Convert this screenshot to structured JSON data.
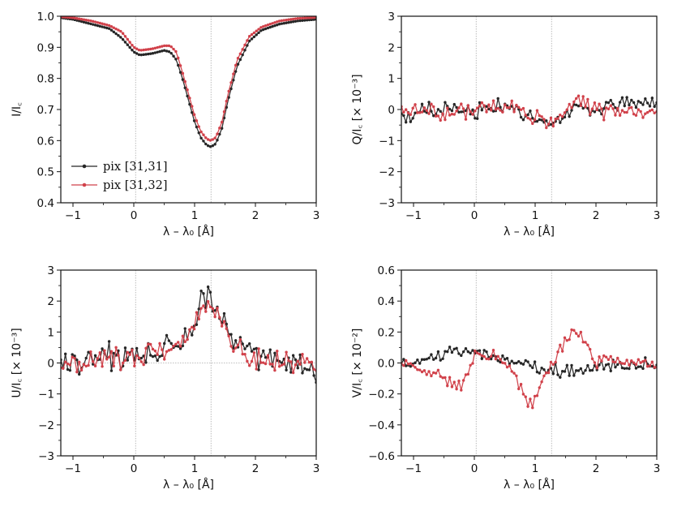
{
  "colors": {
    "pix1": "#262626",
    "pix2": "#d1414a",
    "guide": "#aaaaaa"
  },
  "legend": [
    {
      "label": "pix [31,31]",
      "color": "#262626"
    },
    {
      "label": "pix [31,32]",
      "color": "#d1414a"
    }
  ],
  "chart_data": [
    {
      "id": "I",
      "type": "line",
      "xlabel": "λ – λ₀ [Å]",
      "ylabel": "I/I꜀",
      "xlim": [
        -1.2,
        3
      ],
      "ylim": [
        0.4,
        1.0
      ],
      "xticks": [
        -1,
        0,
        1,
        2,
        3
      ],
      "xtick_labels": [
        "−1",
        "0",
        "1",
        "2",
        "3"
      ],
      "yticks": [
        0.4,
        0.5,
        0.6,
        0.7,
        0.8,
        0.9,
        1.0
      ],
      "ytick_labels": [
        "0.4",
        "0.5",
        "0.6",
        "0.7",
        "0.8",
        "0.9",
        "1.0"
      ],
      "vlines": [
        0.03,
        1.27
      ],
      "hline": null,
      "keypoints": [
        {
          "name": "pix [31,31]",
          "points": [
            [
              -1.2,
              0.995
            ],
            [
              -1.0,
              0.99
            ],
            [
              -0.7,
              0.975
            ],
            [
              -0.4,
              0.96
            ],
            [
              -0.2,
              0.93
            ],
            [
              0.0,
              0.885
            ],
            [
              0.1,
              0.875
            ],
            [
              0.3,
              0.88
            ],
            [
              0.5,
              0.89
            ],
            [
              0.6,
              0.885
            ],
            [
              0.7,
              0.86
            ],
            [
              0.8,
              0.8
            ],
            [
              0.9,
              0.73
            ],
            [
              1.0,
              0.66
            ],
            [
              1.1,
              0.61
            ],
            [
              1.2,
              0.585
            ],
            [
              1.27,
              0.58
            ],
            [
              1.35,
              0.59
            ],
            [
              1.45,
              0.64
            ],
            [
              1.55,
              0.73
            ],
            [
              1.7,
              0.84
            ],
            [
              1.9,
              0.92
            ],
            [
              2.1,
              0.955
            ],
            [
              2.4,
              0.975
            ],
            [
              2.7,
              0.985
            ],
            [
              3.0,
              0.99
            ]
          ]
        },
        {
          "name": "pix [31,32]",
          "points": [
            [
              -1.2,
              0.998
            ],
            [
              -1.0,
              0.995
            ],
            [
              -0.7,
              0.985
            ],
            [
              -0.4,
              0.97
            ],
            [
              -0.2,
              0.95
            ],
            [
              0.0,
              0.9
            ],
            [
              0.1,
              0.89
            ],
            [
              0.3,
              0.895
            ],
            [
              0.5,
              0.905
            ],
            [
              0.6,
              0.905
            ],
            [
              0.7,
              0.885
            ],
            [
              0.8,
              0.82
            ],
            [
              0.9,
              0.75
            ],
            [
              1.0,
              0.68
            ],
            [
              1.1,
              0.63
            ],
            [
              1.2,
              0.605
            ],
            [
              1.27,
              0.6
            ],
            [
              1.35,
              0.61
            ],
            [
              1.45,
              0.66
            ],
            [
              1.55,
              0.75
            ],
            [
              1.7,
              0.86
            ],
            [
              1.9,
              0.935
            ],
            [
              2.1,
              0.965
            ],
            [
              2.4,
              0.985
            ],
            [
              2.7,
              0.993
            ],
            [
              3.0,
              0.996
            ]
          ]
        }
      ],
      "noise": [
        0,
        0
      ],
      "seeds": [
        11,
        12
      ]
    },
    {
      "id": "Q",
      "type": "line",
      "xlabel": "λ – λ₀ [Å]",
      "ylabel": "Q/I꜀  [× 10⁻³]",
      "xlim": [
        -1.2,
        3
      ],
      "ylim": [
        -3,
        3
      ],
      "xticks": [
        -1,
        0,
        1,
        2,
        3
      ],
      "xtick_labels": [
        "−1",
        "0",
        "1",
        "2",
        "3"
      ],
      "yticks": [
        -3,
        -2,
        -1,
        0,
        1,
        2,
        3
      ],
      "ytick_labels": [
        "−3",
        "−2",
        "−1",
        "0",
        "1",
        "2",
        "3"
      ],
      "vlines": [
        0.03,
        1.27
      ],
      "hline": null,
      "keypoints": [
        {
          "name": "pix [31,31]",
          "points": [
            [
              -1.2,
              -0.2
            ],
            [
              -0.5,
              0.05
            ],
            [
              0.0,
              -0.05
            ],
            [
              0.4,
              0.1
            ],
            [
              0.8,
              -0.1
            ],
            [
              1.0,
              -0.4
            ],
            [
              1.3,
              -0.5
            ],
            [
              1.6,
              0.0
            ],
            [
              2.0,
              0.1
            ],
            [
              2.5,
              0.2
            ],
            [
              3.0,
              0.3
            ]
          ]
        },
        {
          "name": "pix [31,32]",
          "points": [
            [
              -1.2,
              0.0
            ],
            [
              -0.5,
              -0.1
            ],
            [
              0.0,
              -0.05
            ],
            [
              0.4,
              0.25
            ],
            [
              0.8,
              0.0
            ],
            [
              1.0,
              -0.3
            ],
            [
              1.3,
              -0.4
            ],
            [
              1.6,
              0.2
            ],
            [
              1.8,
              0.3
            ],
            [
              2.2,
              -0.1
            ],
            [
              2.6,
              0.0
            ],
            [
              3.0,
              -0.1
            ]
          ]
        }
      ],
      "noise": [
        0.2,
        0.2
      ],
      "seeds": [
        21,
        22
      ]
    },
    {
      "id": "U",
      "type": "line",
      "xlabel": "λ – λ₀ [Å]",
      "ylabel": "U/I꜀  [× 10⁻³]",
      "xlim": [
        -1.2,
        3
      ],
      "ylim": [
        -3,
        3
      ],
      "xticks": [
        -1,
        0,
        1,
        2,
        3
      ],
      "xtick_labels": [
        "−1",
        "0",
        "1",
        "2",
        "3"
      ],
      "yticks": [
        -3,
        -2,
        -1,
        0,
        1,
        2,
        3
      ],
      "ytick_labels": [
        "−3",
        "−2",
        "−1",
        "0",
        "1",
        "2",
        "3"
      ],
      "vlines": [
        0.03,
        1.27
      ],
      "hline": 0,
      "keypoints": [
        {
          "name": "pix [31,31]",
          "points": [
            [
              -1.2,
              0.0
            ],
            [
              -0.5,
              0.2
            ],
            [
              0.0,
              0.3
            ],
            [
              0.4,
              0.3
            ],
            [
              0.8,
              0.5
            ],
            [
              1.0,
              1.3
            ],
            [
              1.1,
              2.0
            ],
            [
              1.27,
              2.3
            ],
            [
              1.4,
              1.7
            ],
            [
              1.6,
              0.7
            ],
            [
              1.8,
              0.4
            ],
            [
              2.2,
              0.0
            ],
            [
              2.6,
              0.0
            ],
            [
              3.0,
              -0.3
            ]
          ]
        },
        {
          "name": "pix [31,32]",
          "points": [
            [
              -1.2,
              -0.2
            ],
            [
              -0.5,
              0.2
            ],
            [
              0.0,
              0.2
            ],
            [
              0.4,
              0.3
            ],
            [
              0.8,
              0.6
            ],
            [
              1.0,
              1.3
            ],
            [
              1.1,
              1.9
            ],
            [
              1.27,
              1.9
            ],
            [
              1.4,
              1.6
            ],
            [
              1.6,
              0.9
            ],
            [
              1.8,
              0.4
            ],
            [
              2.2,
              0.0
            ],
            [
              2.6,
              0.1
            ],
            [
              3.0,
              -0.1
            ]
          ]
        }
      ],
      "noise": [
        0.32,
        0.3
      ],
      "seeds": [
        31,
        32
      ]
    },
    {
      "id": "V",
      "type": "line",
      "xlabel": "λ – λ₀ [Å]",
      "ylabel": "V/I꜀  [× 10⁻²]",
      "xlim": [
        -1.2,
        3
      ],
      "ylim": [
        -0.6,
        0.6
      ],
      "xticks": [
        -1,
        0,
        1,
        2,
        3
      ],
      "xtick_labels": [
        "−1",
        "0",
        "1",
        "2",
        "3"
      ],
      "yticks": [
        -0.6,
        -0.4,
        -0.2,
        0.0,
        0.2,
        0.4,
        0.6
      ],
      "ytick_labels": [
        "−0.6",
        "−0.4",
        "−0.2",
        "0.0",
        "0.2",
        "0.4",
        "0.6"
      ],
      "vlines": [
        0.03,
        1.27
      ],
      "hline": null,
      "keypoints": [
        {
          "name": "pix [31,31]",
          "points": [
            [
              -1.2,
              0.0
            ],
            [
              -0.8,
              0.02
            ],
            [
              -0.4,
              0.06
            ],
            [
              0.0,
              0.08
            ],
            [
              0.3,
              0.05
            ],
            [
              0.6,
              0.01
            ],
            [
              0.9,
              -0.02
            ],
            [
              1.2,
              -0.04
            ],
            [
              1.6,
              -0.05
            ],
            [
              2.0,
              -0.03
            ],
            [
              2.5,
              -0.01
            ],
            [
              3.0,
              0.0
            ]
          ]
        },
        {
          "name": "pix [31,32]",
          "points": [
            [
              -1.2,
              0.0
            ],
            [
              -0.8,
              -0.05
            ],
            [
              -0.4,
              -0.12
            ],
            [
              -0.2,
              -0.16
            ],
            [
              0.0,
              0.05
            ],
            [
              0.3,
              0.04
            ],
            [
              0.6,
              -0.02
            ],
            [
              0.8,
              -0.2
            ],
            [
              0.9,
              -0.27
            ],
            [
              1.0,
              -0.25
            ],
            [
              1.2,
              -0.05
            ],
            [
              1.4,
              0.08
            ],
            [
              1.6,
              0.18
            ],
            [
              1.8,
              0.15
            ],
            [
              2.0,
              0.02
            ],
            [
              2.5,
              0.0
            ],
            [
              3.0,
              0.0
            ]
          ]
        }
      ],
      "noise": [
        0.03,
        0.03
      ],
      "seeds": [
        41,
        42
      ]
    }
  ]
}
